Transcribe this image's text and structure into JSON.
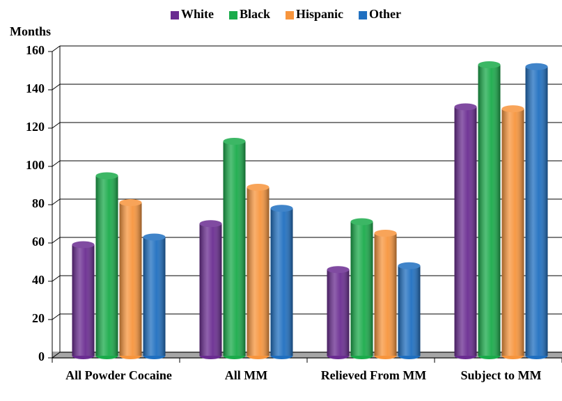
{
  "chart_data": {
    "type": "bar",
    "y_label": "Months",
    "categories": [
      "All Powder Cocaine",
      "All MM",
      "Relieved From MM",
      "Subject to MM"
    ],
    "series": [
      {
        "name": "White",
        "color": "#6a2c91",
        "values": [
          58,
          69,
          45,
          130
        ]
      },
      {
        "name": "Black",
        "color": "#1aab4b",
        "values": [
          94,
          112,
          70,
          152
        ]
      },
      {
        "name": "Hispanic",
        "color": "#f7953d",
        "values": [
          80,
          88,
          64,
          129
        ]
      },
      {
        "name": "Other",
        "color": "#1f6fc0",
        "values": [
          62,
          77,
          47,
          151
        ]
      }
    ],
    "ylim": [
      0,
      160
    ],
    "yticks": [
      0,
      20,
      40,
      60,
      80,
      100,
      120,
      140,
      160
    ],
    "grid": true
  }
}
